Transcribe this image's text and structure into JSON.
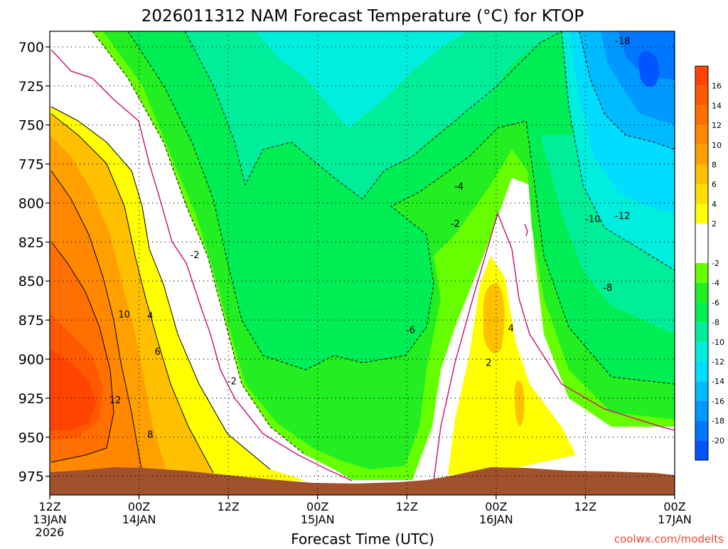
{
  "chart_data": {
    "type": "heatmap",
    "title": "2026011312 NAM Forecast Temperature (°C) for KTOP",
    "xlabel": "Forecast Time (UTC)",
    "ylabel": "",
    "credit": "coolwx.com/modelts",
    "x_ticks": [
      {
        "hour": 0,
        "line1": "12Z",
        "line2": "13JAN",
        "line3": "2026"
      },
      {
        "hour": 12,
        "line1": "00Z",
        "line2": "14JAN",
        "line3": ""
      },
      {
        "hour": 24,
        "line1": "12Z",
        "line2": "",
        "line3": ""
      },
      {
        "hour": 36,
        "line1": "00Z",
        "line2": "15JAN",
        "line3": ""
      },
      {
        "hour": 48,
        "line1": "12Z",
        "line2": "",
        "line3": ""
      },
      {
        "hour": 60,
        "line1": "00Z",
        "line2": "16JAN",
        "line3": ""
      },
      {
        "hour": 72,
        "line1": "12Z",
        "line2": "",
        "line3": ""
      },
      {
        "hour": 84,
        "line1": "00Z",
        "line2": "17JAN",
        "line3": ""
      }
    ],
    "xlim": [
      0,
      84
    ],
    "y_ticks": [
      700,
      725,
      750,
      775,
      800,
      825,
      850,
      875,
      900,
      925,
      950,
      975
    ],
    "ylim": [
      690,
      987
    ],
    "colorbar": {
      "labels": [
        16,
        14,
        12,
        10,
        8,
        6,
        4,
        2,
        -2,
        -4,
        -6,
        -8,
        -10,
        -12,
        -14,
        -16,
        -18,
        -20
      ],
      "bands": [
        {
          "from": 16,
          "to": 18,
          "color": "#ff4400"
        },
        {
          "from": 14,
          "to": 16,
          "color": "#ff5a00"
        },
        {
          "from": 12,
          "to": 14,
          "color": "#ff7000"
        },
        {
          "from": 10,
          "to": 12,
          "color": "#ff8800"
        },
        {
          "from": 8,
          "to": 10,
          "color": "#ffa000"
        },
        {
          "from": 6,
          "to": 8,
          "color": "#ffc000"
        },
        {
          "from": 4,
          "to": 6,
          "color": "#ffe000"
        },
        {
          "from": 2,
          "to": 4,
          "color": "#ffff00"
        },
        {
          "from": -2,
          "to": 2,
          "color": "#ffffff"
        },
        {
          "from": -4,
          "to": -2,
          "color": "#66ff00"
        },
        {
          "from": -6,
          "to": -4,
          "color": "#22ee22"
        },
        {
          "from": -8,
          "to": -6,
          "color": "#00ee55"
        },
        {
          "from": -10,
          "to": -8,
          "color": "#00ee99"
        },
        {
          "from": -12,
          "to": -10,
          "color": "#00eedd"
        },
        {
          "from": -14,
          "to": -12,
          "color": "#00ddff"
        },
        {
          "from": -16,
          "to": -14,
          "color": "#00bbff"
        },
        {
          "from": -18,
          "to": -16,
          "color": "#0099ff"
        },
        {
          "from": -20,
          "to": -18,
          "color": "#0077ff"
        },
        {
          "from": -22,
          "to": -20,
          "color": "#0055ff"
        }
      ]
    },
    "contour_labels": [
      {
        "text": "-18",
        "hour": 77,
        "p": 696
      },
      {
        "text": "-4",
        "hour": 55,
        "p": 789
      },
      {
        "text": "-2",
        "hour": 54.5,
        "p": 813
      },
      {
        "text": "-10",
        "hour": 73,
        "p": 810
      },
      {
        "text": "-12",
        "hour": 77,
        "p": 808
      },
      {
        "text": "-8",
        "hour": 75,
        "p": 854
      },
      {
        "text": "-2",
        "hour": 19.5,
        "p": 833
      },
      {
        "text": "10",
        "hour": 10,
        "p": 871
      },
      {
        "text": "4",
        "hour": 13.5,
        "p": 872
      },
      {
        "text": "6",
        "hour": 14.5,
        "p": 895
      },
      {
        "text": "12",
        "hour": 8.8,
        "p": 926
      },
      {
        "text": "8",
        "hour": 13.5,
        "p": 948
      },
      {
        "text": "-2",
        "hour": 24.5,
        "p": 914
      },
      {
        "text": "-6",
        "hour": 48.5,
        "p": 881
      },
      {
        "text": "4",
        "hour": 62,
        "p": 880
      },
      {
        "text": "2",
        "hour": 59,
        "p": 902
      }
    ],
    "terrain_color": "#a0522d",
    "background": "#ffffff"
  }
}
